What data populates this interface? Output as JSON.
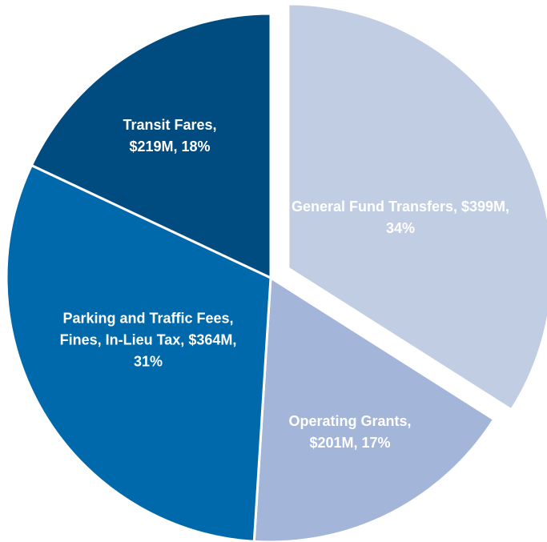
{
  "chart_data": {
    "type": "pie",
    "categories": [
      "General Fund Transfers,",
      "Operating Grants,",
      "Parking and Traffic Fees, Fines, In-Lieu Tax,",
      "Transit Fares,"
    ],
    "values": [
      34,
      17,
      31,
      18
    ],
    "value_labels": [
      "$399M, 34%",
      "$201M, 17%",
      "$364M, 31%",
      "$219M, 18%"
    ],
    "colors": [
      "#c0cde3",
      "#a3b5d8",
      "#0069ab",
      "#004b80"
    ],
    "startangle": 90,
    "counterclock": false
  }
}
